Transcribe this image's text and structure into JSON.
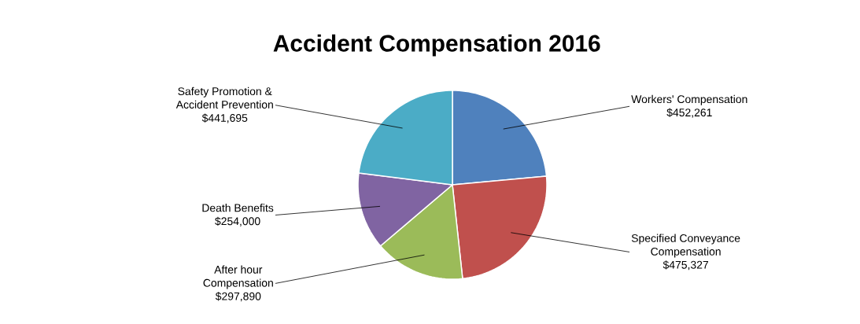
{
  "chart_data": {
    "type": "pie",
    "title": "Accident Compensation 2016",
    "categories": [
      "Workers' Compensation",
      "Specified Conveyance Compensation",
      "After hour Compensation",
      "Death Benefits",
      "Safety Promotion & Accident Prevention"
    ],
    "values": [
      452261,
      475327,
      297890,
      254000,
      441695
    ],
    "value_labels": [
      "$452,261",
      "$475,327",
      "$297,890",
      "$254,000",
      "$441,695"
    ],
    "colors": [
      "#4f81bd",
      "#c0504d",
      "#9bbb59",
      "#8064a2",
      "#4bacc6"
    ]
  }
}
